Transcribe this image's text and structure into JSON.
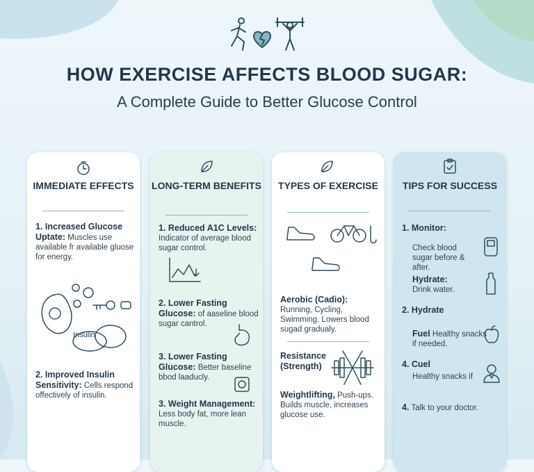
{
  "header": {
    "title": "HOW EXERCISE AFFECTS BLOOD SUGAR:",
    "subtitle": "A Complete Guide to Better Glucose Control"
  },
  "columns": [
    {
      "title": "IMMEDIATE EFFECTS",
      "illustration_label": "Insulin",
      "items": [
        {
          "label": "1. Increased Glucose Uptate:",
          "text": "Muscles use available fr available gluose for energy."
        },
        {
          "label": "2. Improved Insulin Sensitivity:",
          "text": "Cells respond offectively of insulin."
        }
      ]
    },
    {
      "title": "LONG-TERM BENEFITS",
      "items": [
        {
          "label": "1. Reduced A1C Levels:",
          "text": "Indicator of average blood sugar control."
        },
        {
          "label": "2. Lower Fasting Glucose:",
          "text": "of aaseline blood sugar cantrol."
        },
        {
          "label": "3. Lower Fasting Glucose:",
          "text": "Better baseline bbod laaducly."
        },
        {
          "label": "3. Weight Management:",
          "text": "Less body fat, more lean muscle."
        }
      ]
    },
    {
      "title": "TYPES OF EXERCISE",
      "items": [
        {
          "label": "Aerobic (Cadio):",
          "text": "Running, Cycling, Swimming. Lowers blood sugad gradualy."
        },
        {
          "label": "Resistance (Strength)"
        },
        {
          "label": "Weightlifting,",
          "text": "Push-ups. Builds muscle, increases glucose use."
        }
      ]
    },
    {
      "title": "TIPS FOR SUCCESS",
      "items": [
        {
          "label": "1. Monitor:"
        },
        {
          "text": "Check blood sugar before & after."
        },
        {
          "label": "Hydrate:",
          "text": "Drink water."
        },
        {
          "label": "2. Hydrate"
        },
        {
          "label": "Fuel",
          "text": "Healthy snacks if needed."
        },
        {
          "label": "4. Cuel"
        },
        {
          "text": "Healthy snacks if"
        },
        {
          "label": "4.",
          "text": "Talk to your doctor."
        }
      ]
    }
  ]
}
